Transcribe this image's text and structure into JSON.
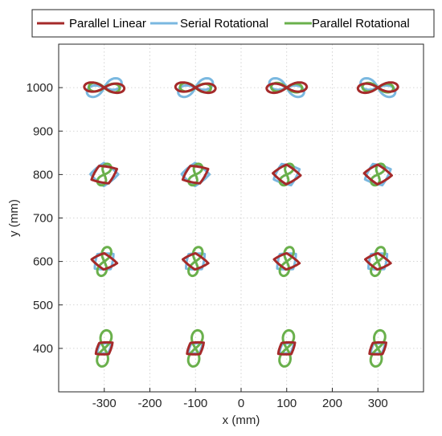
{
  "chart_data": {
    "type": "line",
    "xlabel": "x (mm)",
    "ylabel": "y (mm)",
    "xlim": [
      -400,
      400
    ],
    "ylim": [
      300,
      1100
    ],
    "xticks": [
      -300,
      -200,
      -100,
      0,
      100,
      200,
      300
    ],
    "yticks": [
      400,
      500,
      600,
      700,
      800,
      900,
      1000
    ],
    "grid": true,
    "legend_position": "top",
    "centers_x": [
      -300,
      -100,
      100,
      300
    ],
    "centers_y": [
      1000,
      800,
      600,
      400
    ],
    "series": [
      {
        "name": "Parallel Linear",
        "color": "#a52a2a",
        "shape": "Closed loop traced around each workspace point: a horizontal figure-eight (lemniscate) near y=1000 mm becoming smaller twisted quadrilateral loops at lower y; each loop spans roughly 60-80 mm in x and 20-50 mm in y."
      },
      {
        "name": "Serial Rotational",
        "color": "#7ab8e0",
        "shape": "Closed loop traced around each workspace point, closely following the Parallel Linear loops with a slightly larger spread."
      },
      {
        "name": "Parallel Rotational",
        "color": "#6ab04c",
        "shape": "Closed loop traced around each workspace point; vertically elongated figure-eight at lower y (about 60 mm tall at y=400 mm), wider and flatter near y=1000 mm."
      }
    ]
  }
}
